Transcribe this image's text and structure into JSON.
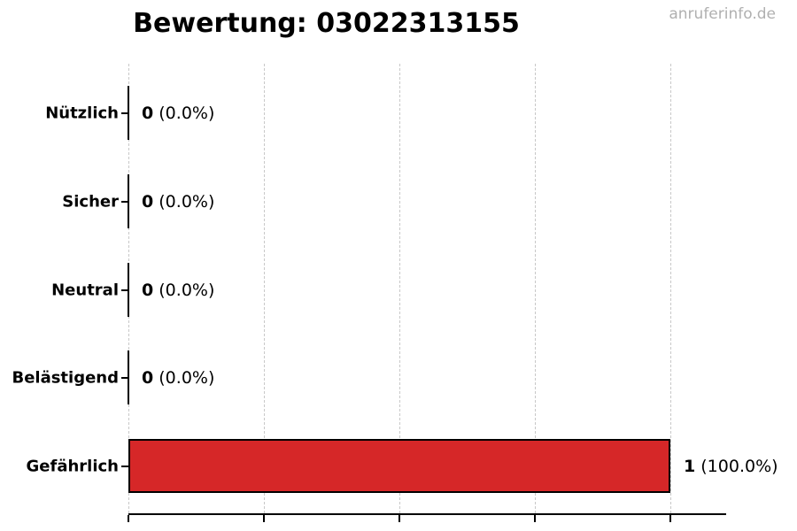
{
  "header": {
    "title": "Bewertung: 03022313155",
    "watermark": "anruferinfo.de"
  },
  "colors": {
    "bar": "#d62728",
    "bar_edge": "#000000",
    "grid": "#c8c8c8",
    "axis": "#000000",
    "watermark": "#b0b0b0",
    "title": "#000000"
  },
  "chart_data": {
    "type": "bar",
    "orientation": "horizontal",
    "title": "Bewertung: 03022313155",
    "categories": [
      "Nützlich",
      "Sicher",
      "Neutral",
      "Belästigend",
      "Gefährlich"
    ],
    "counts": [
      0,
      0,
      0,
      0,
      1
    ],
    "percents": [
      "0.0%",
      "0.0%",
      "0.0%",
      "0.0%",
      "100.0%"
    ],
    "value_labels": [
      "0 (0.0%)",
      "0 (0.0%)",
      "0 (0.0%)",
      "0 (0.0%)",
      "1 (100.0%)"
    ],
    "xlabel": "",
    "ylabel": "",
    "xlim": [
      0,
      1.1
    ],
    "xticks": [
      0,
      0.25,
      0.5,
      0.75,
      1.0
    ],
    "xtick_labels_visible": false,
    "grid": "vertical-dashed",
    "legend": "none"
  }
}
